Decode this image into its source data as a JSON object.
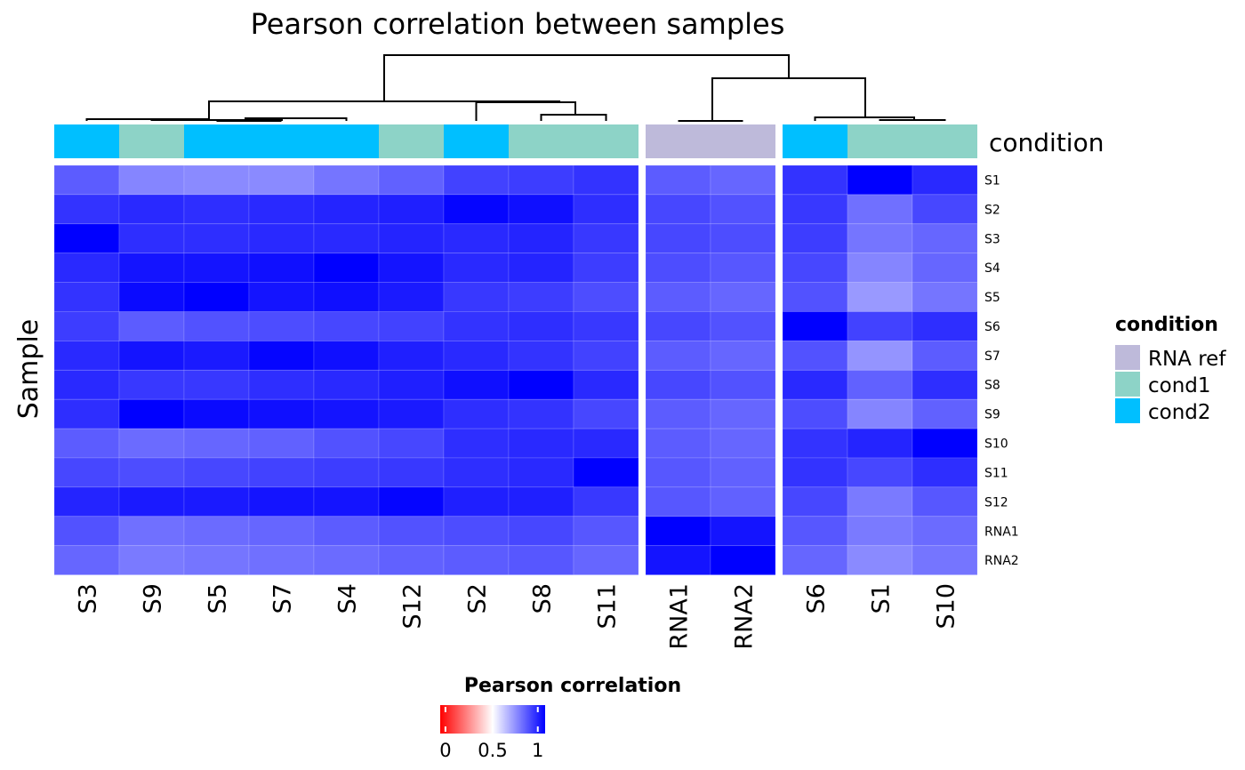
{
  "chart_data": {
    "type": "heatmap",
    "title": "Pearson correlation between samples",
    "ylabel": "Sample",
    "columns": [
      "S3",
      "S9",
      "S5",
      "S7",
      "S4",
      "S12",
      "S2",
      "S8",
      "S11",
      "RNA1",
      "RNA2",
      "S6",
      "S1",
      "S10"
    ],
    "column_groups": [
      9,
      2,
      3
    ],
    "rows": [
      "S1",
      "S2",
      "S3",
      "S4",
      "S5",
      "S6",
      "S7",
      "S8",
      "S9",
      "S10",
      "S11",
      "S12",
      "RNA1",
      "RNA2"
    ],
    "values": [
      [
        0.82,
        0.74,
        0.73,
        0.73,
        0.77,
        0.81,
        0.87,
        0.88,
        0.9,
        0.82,
        0.8,
        0.9,
        1.0,
        0.92
      ],
      [
        0.9,
        0.92,
        0.91,
        0.92,
        0.93,
        0.94,
        0.99,
        0.97,
        0.91,
        0.86,
        0.84,
        0.89,
        0.78,
        0.86
      ],
      [
        1.0,
        0.91,
        0.91,
        0.92,
        0.92,
        0.93,
        0.92,
        0.93,
        0.89,
        0.86,
        0.85,
        0.88,
        0.77,
        0.8
      ],
      [
        0.92,
        0.96,
        0.96,
        0.97,
        1.0,
        0.96,
        0.92,
        0.93,
        0.88,
        0.85,
        0.83,
        0.86,
        0.74,
        0.8
      ],
      [
        0.9,
        0.98,
        1.0,
        0.96,
        0.97,
        0.95,
        0.89,
        0.88,
        0.85,
        0.82,
        0.8,
        0.84,
        0.7,
        0.77
      ],
      [
        0.88,
        0.82,
        0.84,
        0.85,
        0.86,
        0.87,
        0.9,
        0.91,
        0.89,
        0.86,
        0.84,
        1.0,
        0.87,
        0.91
      ],
      [
        0.92,
        0.96,
        0.95,
        0.99,
        0.97,
        0.94,
        0.92,
        0.9,
        0.87,
        0.82,
        0.8,
        0.84,
        0.71,
        0.82
      ],
      [
        0.92,
        0.89,
        0.89,
        0.91,
        0.92,
        0.94,
        0.97,
        1.0,
        0.92,
        0.86,
        0.84,
        0.92,
        0.81,
        0.91
      ],
      [
        0.91,
        1.0,
        0.98,
        0.97,
        0.96,
        0.95,
        0.91,
        0.9,
        0.86,
        0.82,
        0.8,
        0.85,
        0.74,
        0.81
      ],
      [
        0.82,
        0.79,
        0.8,
        0.81,
        0.84,
        0.86,
        0.91,
        0.92,
        0.92,
        0.82,
        0.8,
        0.9,
        0.93,
        1.0
      ],
      [
        0.86,
        0.85,
        0.86,
        0.87,
        0.88,
        0.89,
        0.91,
        0.92,
        1.0,
        0.83,
        0.81,
        0.9,
        0.86,
        0.91
      ],
      [
        0.93,
        0.95,
        0.95,
        0.96,
        0.96,
        0.99,
        0.94,
        0.94,
        0.89,
        0.83,
        0.81,
        0.86,
        0.76,
        0.83
      ],
      [
        0.84,
        0.78,
        0.79,
        0.8,
        0.82,
        0.84,
        0.85,
        0.86,
        0.83,
        1.0,
        0.96,
        0.83,
        0.76,
        0.79
      ],
      [
        0.8,
        0.76,
        0.77,
        0.78,
        0.79,
        0.81,
        0.82,
        0.83,
        0.8,
        0.96,
        1.0,
        0.8,
        0.73,
        0.77
      ]
    ],
    "annotation": {
      "name": "condition",
      "values": [
        "cond2",
        "cond1",
        "cond2",
        "cond2",
        "cond2",
        "cond1",
        "cond2",
        "cond1",
        "cond1",
        "RNA ref",
        "RNA ref",
        "cond2",
        "cond1",
        "cond1"
      ]
    },
    "condition_legend": {
      "title": "condition",
      "items": [
        {
          "label": "RNA ref",
          "color": "#bebada"
        },
        {
          "label": "cond1",
          "color": "#8dd3c7"
        },
        {
          "label": "cond2",
          "color": "#00bfff"
        }
      ],
      "placement": "right"
    },
    "colorbar": {
      "title": "Pearson correlation",
      "ticks": [
        "0",
        "0.5",
        "1"
      ],
      "range": [
        0,
        1
      ],
      "colors": [
        "#ff0000",
        "#ffffff",
        "#0000ff"
      ],
      "placement": "bottom"
    }
  }
}
